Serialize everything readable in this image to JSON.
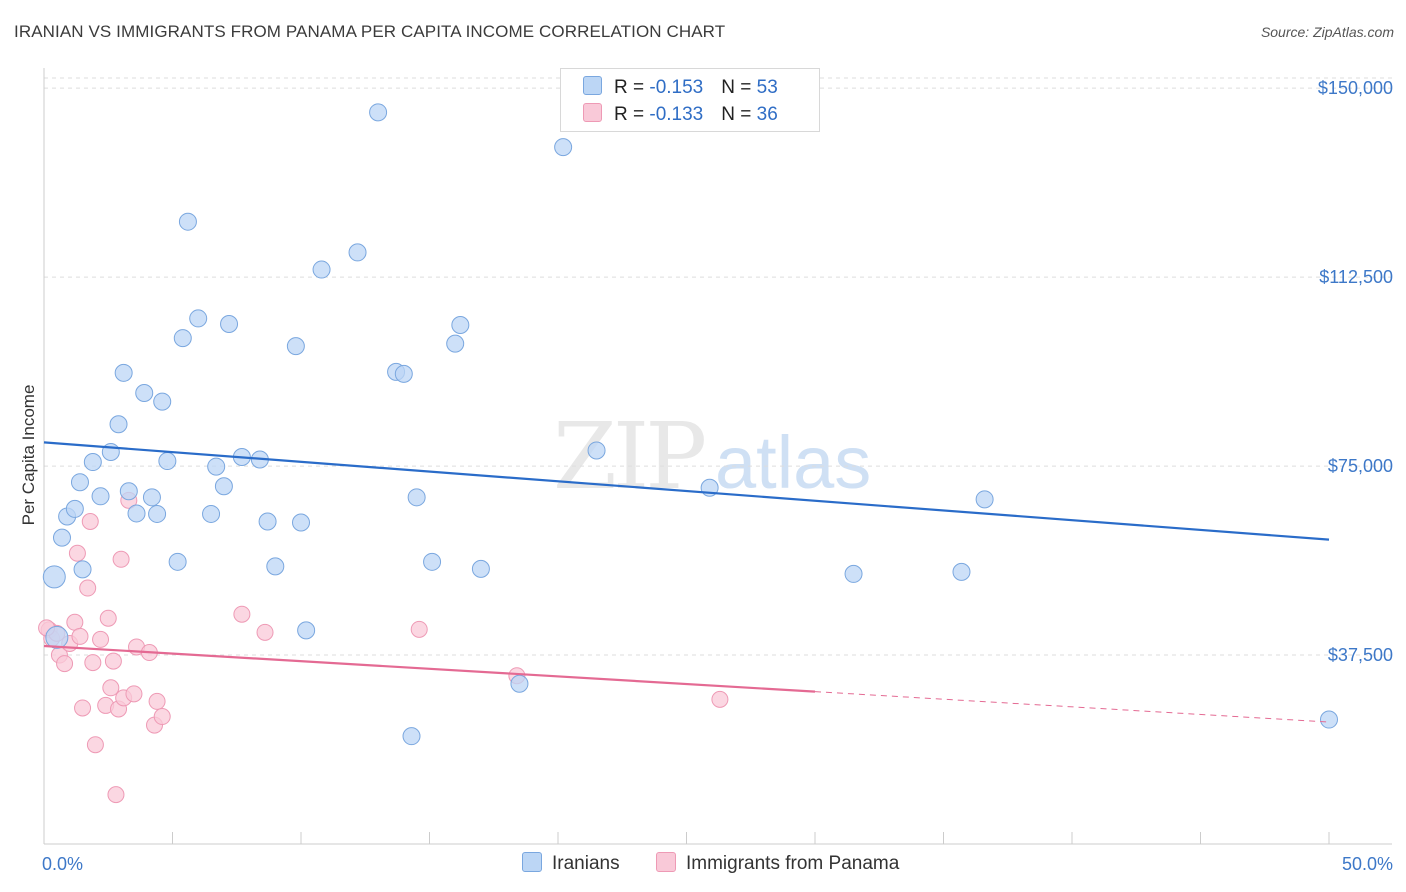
{
  "header": {
    "title": "IRANIAN VS IMMIGRANTS FROM PANAMA PER CAPITA INCOME CORRELATION CHART",
    "source": "Source: ZipAtlas.com"
  },
  "legend": {
    "rows": [
      {
        "r_label": "R = ",
        "r_value": "-0.153",
        "n_label": "N = ",
        "n_value": "53"
      },
      {
        "r_label": "R = ",
        "r_value": "-0.133",
        "n_label": "N = ",
        "n_value": "36"
      }
    ],
    "bottom": [
      "Iranians",
      "Immigrants from Panama"
    ]
  },
  "colors": {
    "blue_fill": "#bcd6f5",
    "blue_stroke": "#7aa7df",
    "blue_line": "#2a6cc9",
    "pink_fill": "#f9c9d8",
    "pink_stroke": "#ee9ab5",
    "pink_line": "#e46a93",
    "grid": "#dddddd",
    "axis_text": "#3d78c8"
  },
  "chart_data": {
    "type": "scatter",
    "ylabel": "Per Capita Income",
    "x_tick_labels": [
      "0.0%",
      "50.0%"
    ],
    "y_tick_labels": [
      "$37,500",
      "$75,000",
      "$112,500",
      "$150,000"
    ],
    "y_ticks": [
      37500,
      75000,
      112500,
      150000
    ],
    "xlim": [
      0,
      50
    ],
    "ylim": [
      0,
      154000
    ],
    "grid": true,
    "legend_position": "top-center",
    "series": [
      {
        "name": "Iranians",
        "color": "#bcd6f5",
        "trend": {
          "x": [
            0,
            50
          ],
          "y": [
            79700,
            60400
          ],
          "dashed_from": null
        },
        "points": [
          [
            0.5,
            41000
          ],
          [
            0.4,
            53000
          ],
          [
            0.7,
            60800
          ],
          [
            0.9,
            65000
          ],
          [
            1.2,
            66500
          ],
          [
            1.4,
            71800
          ],
          [
            1.5,
            54500
          ],
          [
            1.9,
            75800
          ],
          [
            2.2,
            69000
          ],
          [
            2.6,
            77800
          ],
          [
            2.9,
            83300
          ],
          [
            3.1,
            93500
          ],
          [
            3.3,
            70000
          ],
          [
            3.6,
            65600
          ],
          [
            3.9,
            89500
          ],
          [
            4.2,
            68800
          ],
          [
            4.4,
            65500
          ],
          [
            4.6,
            87800
          ],
          [
            4.8,
            76000
          ],
          [
            5.2,
            56000
          ],
          [
            5.4,
            100400
          ],
          [
            5.6,
            123500
          ],
          [
            6.0,
            104300
          ],
          [
            6.5,
            65500
          ],
          [
            6.7,
            74900
          ],
          [
            7.0,
            71000
          ],
          [
            7.2,
            103200
          ],
          [
            7.7,
            76800
          ],
          [
            8.4,
            76300
          ],
          [
            8.7,
            64000
          ],
          [
            9.0,
            55100
          ],
          [
            9.8,
            98800
          ],
          [
            10.0,
            63800
          ],
          [
            10.2,
            42400
          ],
          [
            10.8,
            114000
          ],
          [
            12.2,
            117400
          ],
          [
            13.7,
            93700
          ],
          [
            14.0,
            93300
          ],
          [
            13.0,
            145200
          ],
          [
            14.3,
            21400
          ],
          [
            14.5,
            68800
          ],
          [
            15.1,
            56000
          ],
          [
            16.2,
            103000
          ],
          [
            16.0,
            99300
          ],
          [
            17.0,
            54600
          ],
          [
            18.5,
            31800
          ],
          [
            20.2,
            138300
          ],
          [
            21.5,
            78100
          ],
          [
            25.9,
            70700
          ],
          [
            31.5,
            53600
          ],
          [
            35.7,
            54000
          ],
          [
            36.6,
            68400
          ],
          [
            50.0,
            24700
          ]
        ]
      },
      {
        "name": "Immigrants from Panama",
        "color": "#f9c9d8",
        "trend": {
          "x": [
            0,
            50
          ],
          "y": [
            39300,
            24200
          ],
          "dashed_from": 30
        },
        "points": [
          [
            0.2,
            42500
          ],
          [
            0.3,
            40800
          ],
          [
            0.5,
            41800
          ],
          [
            0.6,
            37500
          ],
          [
            0.8,
            35800
          ],
          [
            1.0,
            39800
          ],
          [
            1.2,
            44000
          ],
          [
            1.3,
            57700
          ],
          [
            1.4,
            41200
          ],
          [
            1.5,
            27000
          ],
          [
            1.7,
            50800
          ],
          [
            1.8,
            64000
          ],
          [
            1.9,
            36000
          ],
          [
            2.0,
            19700
          ],
          [
            2.2,
            40600
          ],
          [
            2.4,
            27500
          ],
          [
            2.5,
            44800
          ],
          [
            2.6,
            31000
          ],
          [
            2.7,
            36300
          ],
          [
            2.8,
            9800
          ],
          [
            2.9,
            26800
          ],
          [
            3.0,
            56500
          ],
          [
            3.1,
            29000
          ],
          [
            3.3,
            68200
          ],
          [
            3.5,
            29800
          ],
          [
            3.6,
            39100
          ],
          [
            4.1,
            38000
          ],
          [
            4.3,
            23600
          ],
          [
            4.4,
            28300
          ],
          [
            4.6,
            25300
          ],
          [
            7.7,
            45600
          ],
          [
            8.6,
            42000
          ],
          [
            14.6,
            42600
          ],
          [
            18.4,
            33400
          ],
          [
            26.3,
            28700
          ],
          [
            0.1,
            42900
          ]
        ]
      }
    ]
  }
}
